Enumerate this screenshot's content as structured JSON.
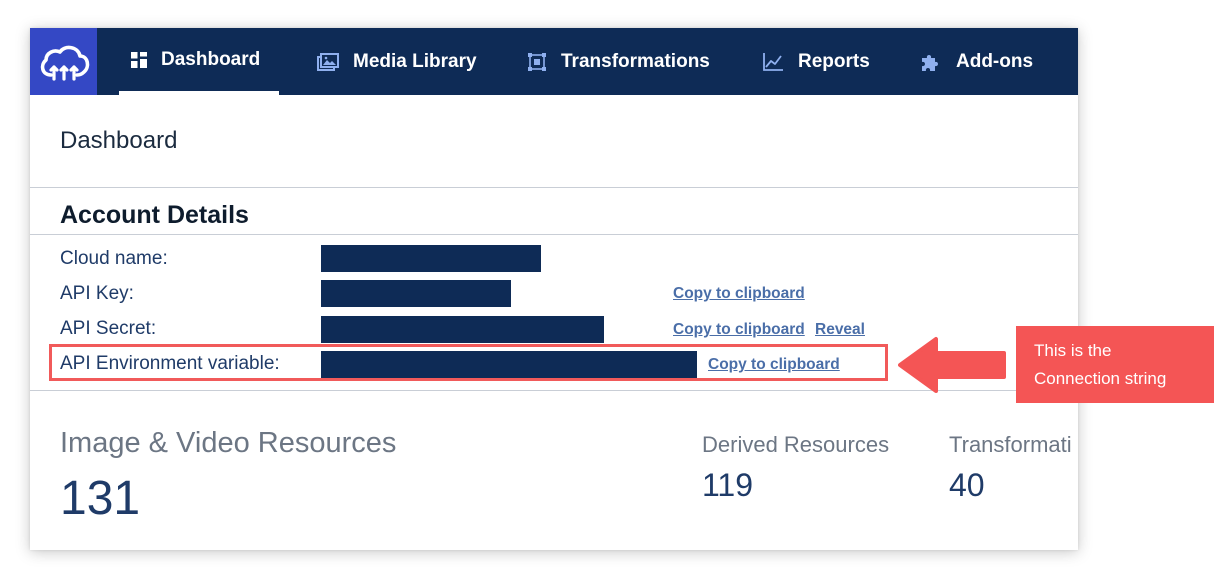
{
  "nav": {
    "items": [
      {
        "label": "Dashboard",
        "icon": "dashboard-grid-icon",
        "active": true
      },
      {
        "label": "Media Library",
        "icon": "media-library-icon"
      },
      {
        "label": "Transformations",
        "icon": "transformations-icon"
      },
      {
        "label": "Reports",
        "icon": "reports-chart-icon"
      },
      {
        "label": "Add-ons",
        "icon": "puzzle-icon"
      }
    ]
  },
  "page": {
    "title": "Dashboard"
  },
  "account": {
    "title": "Account Details",
    "rows": [
      {
        "label": "Cloud name:"
      },
      {
        "label": "API Key:",
        "copy_label": "Copy to clipboard"
      },
      {
        "label": "API Secret:",
        "copy_label": "Copy to clipboard",
        "reveal_label": "Reveal"
      },
      {
        "label": "API Environment variable:",
        "copy_label": "Copy to clipboard"
      }
    ]
  },
  "stats": {
    "image_video": {
      "label": "Image & Video Resources",
      "value": "131"
    },
    "derived": {
      "label": "Derived Resources",
      "value": "119"
    },
    "transformations": {
      "label": "Transformati",
      "value": "40"
    }
  },
  "callout": {
    "line1": "This is the",
    "line2": "Connection string"
  },
  "colors": {
    "nav_bg": "#0e2b56",
    "logo_bg": "#3448c5",
    "link": "#4a6ea8",
    "highlight": "#f15a5a",
    "callout_bg": "#f45555"
  }
}
